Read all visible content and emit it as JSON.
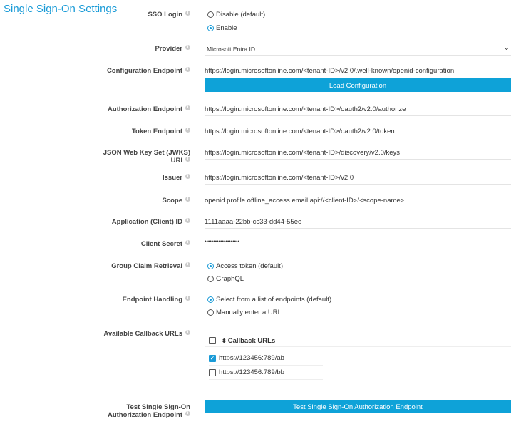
{
  "title": "Single Sign-On Settings",
  "sso_login": {
    "label": "SSO Login",
    "options": [
      "Disable (default)",
      "Enable"
    ],
    "selected": 1
  },
  "provider": {
    "label": "Provider",
    "value": "Microsoft Entra ID"
  },
  "config": {
    "label": "Configuration Endpoint",
    "value": "https://login.microsoftonline.com/<tenant-ID>/v2.0/.well-known/openid-configuration",
    "button": "Load Configuration"
  },
  "auth": {
    "label": "Authorization Endpoint",
    "value": "https://login.microsoftonline.com/<tenant-ID>/oauth2/v2.0/authorize"
  },
  "token": {
    "label": "Token Endpoint",
    "value": "https://login.microsoftonline.com/<tenant-ID>/oauth2/v2.0/token"
  },
  "jwks": {
    "label1": "JSON Web Key Set (JWKS)",
    "label2": "URI",
    "value": "https://login.microsoftonline.com/<tenant-ID>/discovery/v2.0/keys"
  },
  "issuer": {
    "label": "Issuer",
    "value": "https://login.microsoftonline.com/<tenant-ID>/v2.0"
  },
  "scope": {
    "label": "Scope",
    "value": "openid profile offline_access email api://<client-ID>/<scope-name>"
  },
  "client_id": {
    "label": "Application (Client) ID",
    "value": "1111aaaa-22bb-cc33-dd44-55ee"
  },
  "secret": {
    "label": "Client Secret",
    "value": "••••••••••••••••••••"
  },
  "group": {
    "label": "Group Claim Retrieval",
    "options": [
      "Access token (default)",
      "GraphQL"
    ],
    "selected": 0
  },
  "endpoint": {
    "label": "Endpoint Handling",
    "options": [
      "Select from a list of endpoints (default)",
      "Manually enter a URL"
    ],
    "selected": 0
  },
  "callbacks": {
    "label": "Available Callback URLs",
    "header": "Callback URLs",
    "rows": [
      {
        "url": "https://123456:789/ab",
        "checked": true
      },
      {
        "url": "https://123456:789/bb",
        "checked": false
      }
    ]
  },
  "test": {
    "label1": "Test Single Sign-On",
    "label2": "Authorization Endpoint",
    "button": "Test Single Sign-On Authorization Endpoint"
  },
  "accent": "#1a9bd7"
}
